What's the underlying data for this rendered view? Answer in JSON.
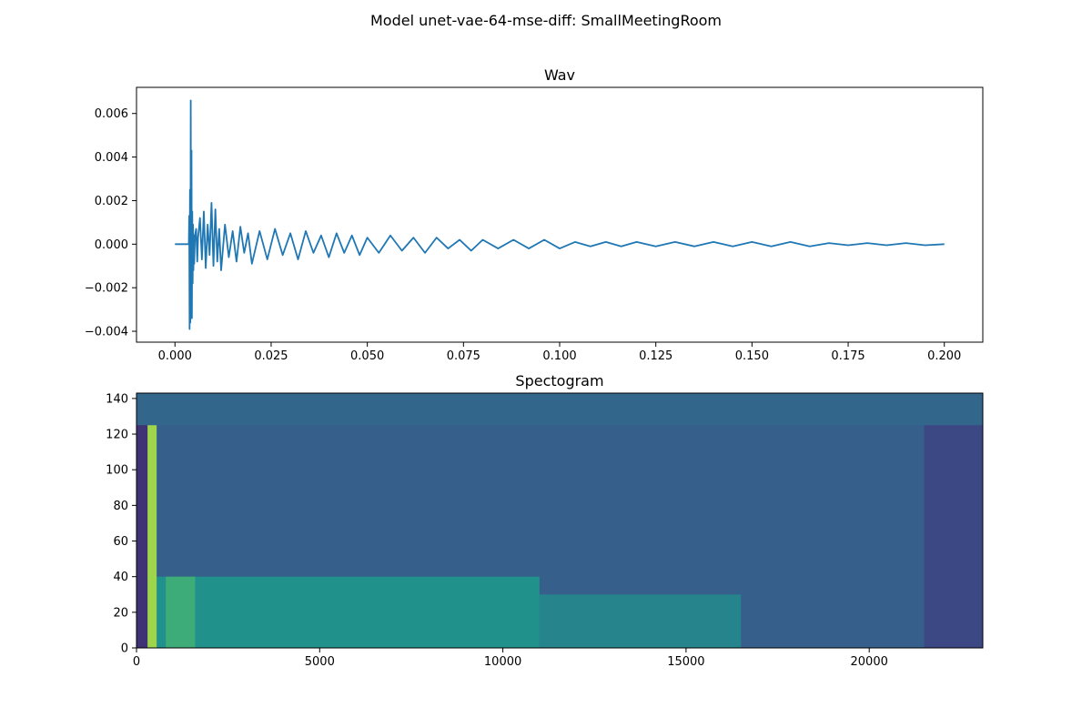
{
  "figure": {
    "suptitle": "Model unet-vae-64-mse-diff: SmallMeetingRoom"
  },
  "chart_data": [
    {
      "type": "line",
      "title": "Wav",
      "xlabel": "",
      "ylabel": "",
      "xlim": [
        -0.01,
        0.21
      ],
      "ylim": [
        -0.0045,
        0.0072
      ],
      "xticks": [
        0.0,
        0.025,
        0.05,
        0.075,
        0.1,
        0.125,
        0.15,
        0.175,
        0.2
      ],
      "xtick_labels": [
        "0.000",
        "0.025",
        "0.050",
        "0.075",
        "0.100",
        "0.125",
        "0.150",
        "0.175",
        "0.200"
      ],
      "yticks": [
        -0.004,
        -0.002,
        0.0,
        0.002,
        0.004,
        0.006
      ],
      "ytick_labels": [
        "−0.004",
        "−0.002",
        "0.000",
        "0.002",
        "0.004",
        "0.006"
      ],
      "grid": false,
      "color": "#1f77b4",
      "series": [
        {
          "x": [
            0.0,
            0.0036,
            0.0037,
            0.0038,
            0.0039,
            0.004,
            0.0041,
            0.0042,
            0.0043,
            0.0044,
            0.0045,
            0.0046,
            0.0047,
            0.0048,
            0.0049,
            0.005,
            0.0052,
            0.0055,
            0.0058,
            0.006,
            0.0065,
            0.007,
            0.0075,
            0.008,
            0.0085,
            0.009,
            0.0095,
            0.01,
            0.0105,
            0.011,
            0.0115,
            0.012,
            0.013,
            0.014,
            0.015,
            0.016,
            0.017,
            0.018,
            0.019,
            0.02,
            0.022,
            0.024,
            0.026,
            0.028,
            0.03,
            0.032,
            0.034,
            0.036,
            0.038,
            0.04,
            0.042,
            0.044,
            0.046,
            0.048,
            0.05,
            0.053,
            0.056,
            0.059,
            0.062,
            0.065,
            0.068,
            0.071,
            0.074,
            0.077,
            0.08,
            0.084,
            0.088,
            0.092,
            0.096,
            0.1,
            0.104,
            0.108,
            0.112,
            0.116,
            0.12,
            0.125,
            0.13,
            0.135,
            0.14,
            0.145,
            0.15,
            0.155,
            0.16,
            0.165,
            0.17,
            0.175,
            0.18,
            0.185,
            0.19,
            0.195,
            0.2
          ],
          "y": [
            0.0,
            0.0,
            0.0013,
            -0.0039,
            0.0025,
            -0.0036,
            0.0066,
            -0.003,
            0.0043,
            -0.0034,
            0.0015,
            -0.0018,
            0.0009,
            -0.0012,
            0.0004,
            -0.0009,
            0.0004,
            0.0007,
            -0.0008,
            0.0003,
            0.0012,
            -0.0007,
            0.0015,
            -0.0011,
            0.0009,
            -0.0005,
            0.0019,
            -0.001,
            0.0016,
            -0.0008,
            0.0007,
            -0.0012,
            0.0009,
            -0.0006,
            0.0006,
            -0.0008,
            0.0008,
            -0.0004,
            0.0005,
            -0.0009,
            0.0006,
            -0.0007,
            0.0007,
            -0.0005,
            0.0005,
            -0.0007,
            0.0006,
            -0.0004,
            0.0004,
            -0.0006,
            0.0005,
            -0.0004,
            0.0004,
            -0.0005,
            0.0003,
            -0.0004,
            0.0004,
            -0.0003,
            0.0003,
            -0.0004,
            0.0003,
            -0.0002,
            0.0002,
            -0.0003,
            0.0002,
            -0.0002,
            0.0002,
            -0.0002,
            0.0002,
            -0.0002,
            0.0001,
            -0.0001,
            0.0001,
            -0.0001,
            0.0001,
            -0.0001,
            0.0001,
            -0.0001,
            0.0001,
            -0.0001,
            0.0001,
            -0.0001,
            0.0001,
            -0.0001,
            5e-05,
            -5e-05,
            5e-05,
            -5e-05,
            5e-05,
            -5e-05,
            0.0
          ]
        }
      ]
    },
    {
      "type": "heatmap",
      "title": "Spectogram",
      "xlabel": "",
      "ylabel": "",
      "xlim": [
        0,
        23100
      ],
      "ylim": [
        0,
        143
      ],
      "xticks": [
        0,
        5000,
        10000,
        15000,
        20000
      ],
      "xtick_labels": [
        "0",
        "5000",
        "10000",
        "15000",
        "20000"
      ],
      "yticks": [
        0,
        20,
        40,
        60,
        80,
        100,
        120,
        140
      ],
      "ytick_labels": [
        "0",
        "20",
        "40",
        "60",
        "80",
        "100",
        "120",
        "140"
      ],
      "colormap": "viridis",
      "bands": [
        {
          "x_from": 0,
          "x_to": 23100,
          "y_from": 0,
          "y_to": 143,
          "level": 0.3
        },
        {
          "x_from": 0,
          "x_to": 23100,
          "y_from": 125,
          "y_to": 143,
          "level": 0.33
        },
        {
          "x_from": 300,
          "x_to": 11000,
          "y_from": 0,
          "y_to": 40,
          "level": 0.5
        },
        {
          "x_from": 11000,
          "x_to": 16500,
          "y_from": 0,
          "y_to": 30,
          "level": 0.45
        },
        {
          "x_from": 800,
          "x_to": 1600,
          "y_from": 0,
          "y_to": 40,
          "level": 0.62
        },
        {
          "x_from": 300,
          "x_to": 550,
          "y_from": 0,
          "y_to": 125,
          "level": 0.85
        },
        {
          "x_from": 0,
          "x_to": 300,
          "y_from": 0,
          "y_to": 125,
          "level": 0.15
        },
        {
          "x_from": 21500,
          "x_to": 23100,
          "y_from": 0,
          "y_to": 125,
          "level": 0.22
        }
      ]
    }
  ]
}
